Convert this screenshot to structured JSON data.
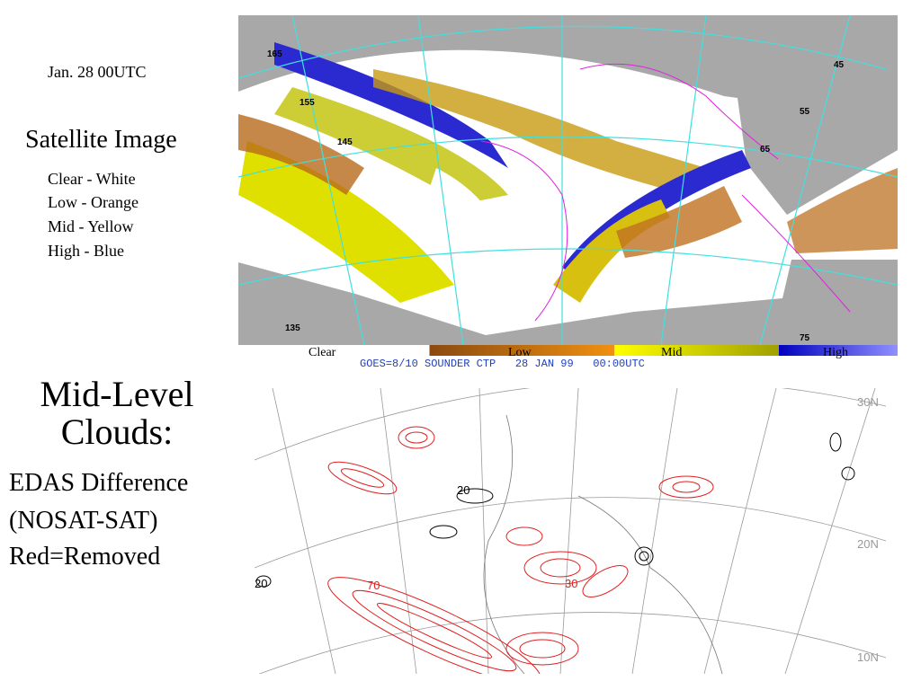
{
  "date": "Jan. 28 00UTC",
  "satellite": {
    "title": "Satellite Image",
    "legend": [
      "Clear - White",
      "Low - Orange",
      "Mid - Yellow",
      "High - Blue"
    ],
    "map_labels": [
      "165",
      "155",
      "145",
      "135",
      "45",
      "55",
      "65",
      "75"
    ],
    "colorbar": [
      "Clear",
      "Low",
      "Mid",
      "High"
    ],
    "caption": "GOES=8/10 SOUNDER CTP   28 JAN 99   00:00UTC"
  },
  "model": {
    "title_lines": [
      "Mid-Level",
      "Clouds:",
      "EDAS Difference",
      "(NOSAT-SAT)",
      "Red=Removed"
    ],
    "map_labels": [
      "30N",
      "20N",
      "10N",
      "20",
      "20",
      "70",
      "30"
    ]
  }
}
